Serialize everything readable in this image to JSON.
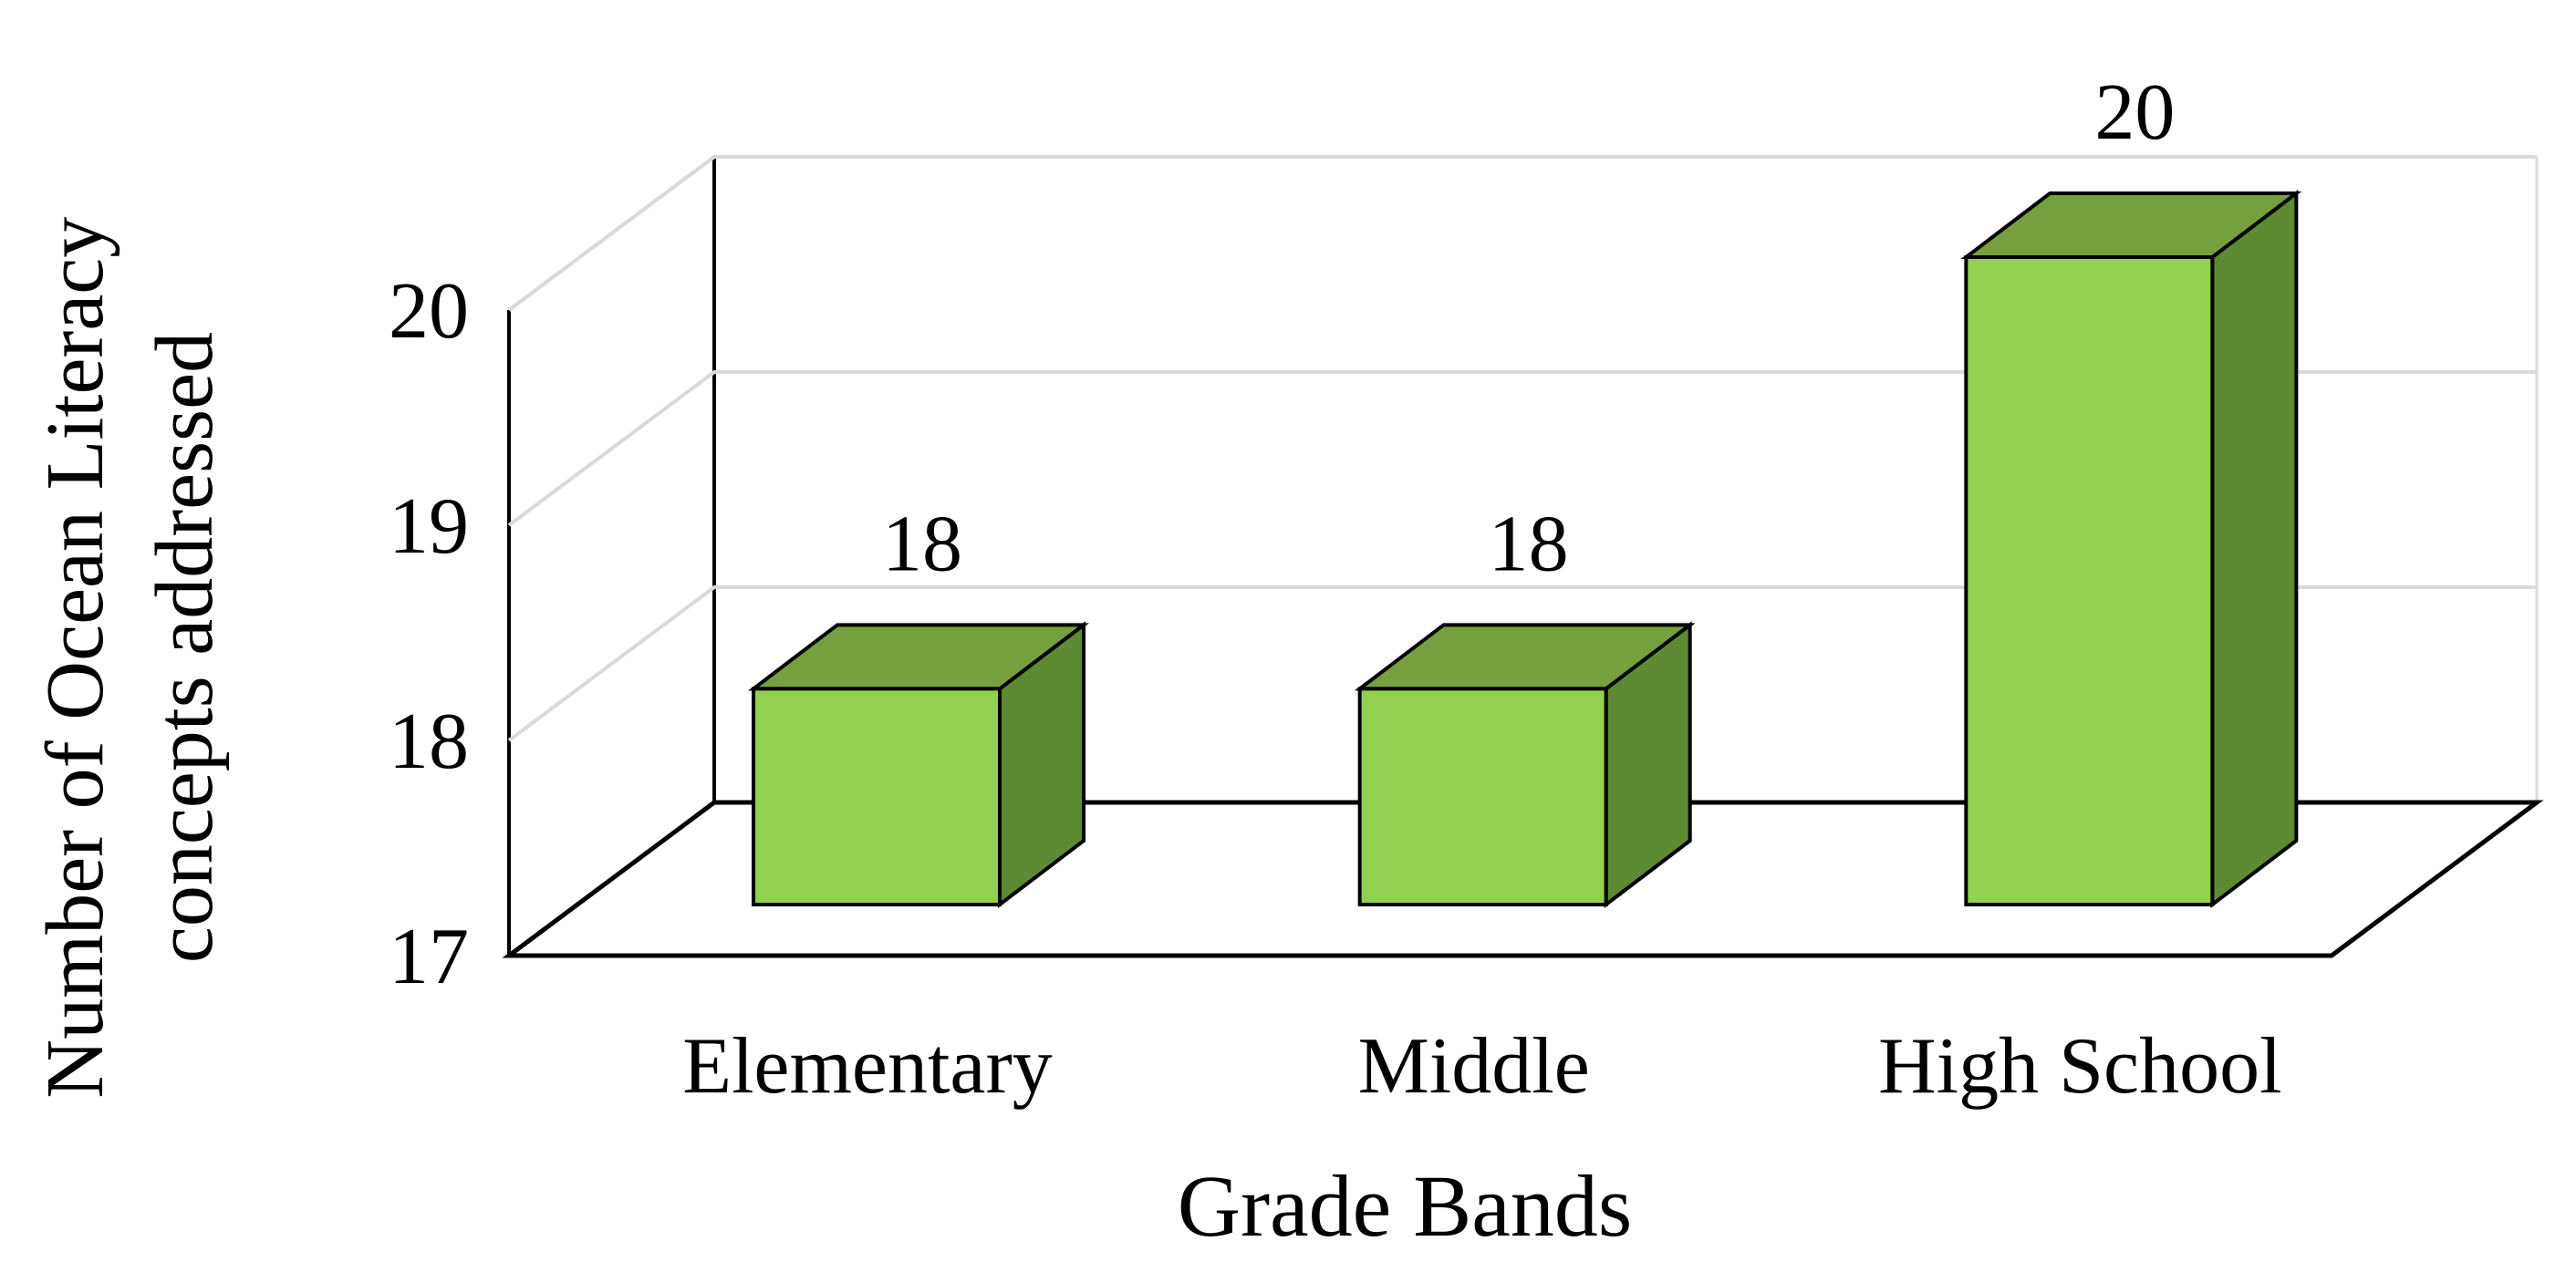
{
  "chart_data": {
    "type": "bar",
    "style": "3d-column",
    "title": "",
    "categories": [
      "Elementary",
      "Middle",
      "High School"
    ],
    "values": [
      18,
      18,
      20
    ],
    "data_labels": [
      "18",
      "18",
      "20"
    ],
    "xlabel": "Grade  Bands",
    "ylabel_lines": [
      "Number of Ocean Literacy",
      "concepts addressed"
    ],
    "yticks": [
      17,
      18,
      19,
      20
    ],
    "ytick_labels": [
      "17",
      "18",
      "19",
      "20"
    ],
    "ylim": [
      17,
      20
    ],
    "grid": true,
    "legend": false,
    "colors": {
      "bar_front": "#92D050",
      "bar_top": "#76A03E",
      "bar_side": "#5E8A33",
      "outline": "#000000",
      "grid": "#D9D9D9",
      "axis": "#000000"
    }
  }
}
